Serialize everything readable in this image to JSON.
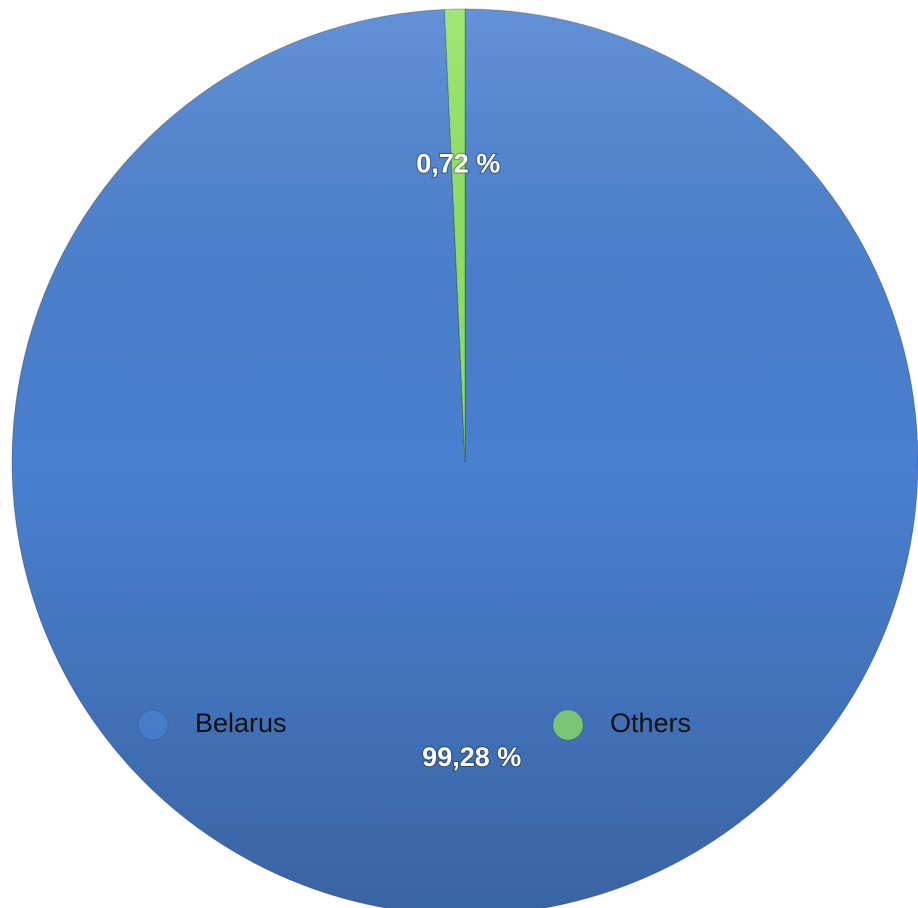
{
  "chart_data": {
    "type": "pie",
    "categories": [
      "Belarus",
      "Others"
    ],
    "values": [
      99.28,
      0.72
    ],
    "value_labels": [
      "99,28 %",
      "0,72 %"
    ],
    "colors": [
      "#4a80d0",
      "#8fe35f"
    ],
    "legend": "bottom"
  }
}
